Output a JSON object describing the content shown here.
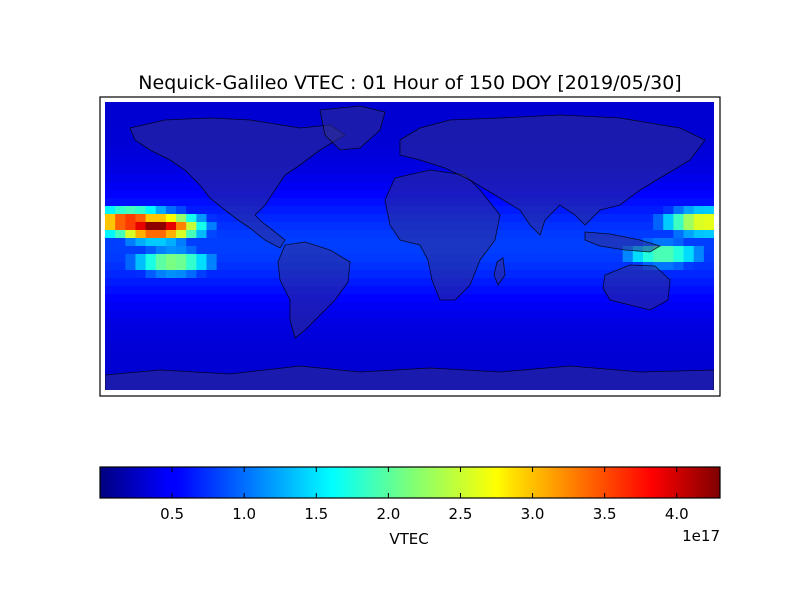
{
  "title": "Nequick-Galileo VTEC : 01 Hour of 150 DOY [2019/05/30]",
  "colorbar": {
    "label": "VTEC",
    "offset_text": "1e17",
    "ticks": [
      "0.5",
      "1.0",
      "1.5",
      "2.0",
      "2.5",
      "3.0",
      "3.5",
      "4.0"
    ],
    "tick_values": [
      0.5,
      1.0,
      1.5,
      2.0,
      2.5,
      3.0,
      3.5,
      4.0
    ],
    "vmin": 0.0,
    "vmax": 4.3,
    "colormap": "jet"
  },
  "map": {
    "projection": "equirectangular",
    "lon_range": [
      -180,
      180
    ],
    "lat_range": [
      -90,
      90
    ],
    "ocean_tint": "#2a2a8a"
  },
  "chart_data": {
    "type": "heatmap",
    "title": "Nequick-Galileo VTEC : 01 Hour of 150 DOY [2019/05/30]",
    "units": "1e17",
    "colorbar_label": "VTEC",
    "value_range": [
      0.0,
      4.3
    ],
    "peaks": [
      {
        "lon": -150,
        "lat": 12,
        "value": 4.3
      },
      {
        "lon": -165,
        "lat": 15,
        "value": 3.8
      },
      {
        "lon": 175,
        "lat": 15,
        "value": 2.8
      },
      {
        "lon": 150,
        "lat": -5,
        "value": 2.1
      },
      {
        "lon": -140,
        "lat": -10,
        "value": 2.3
      }
    ]
  }
}
